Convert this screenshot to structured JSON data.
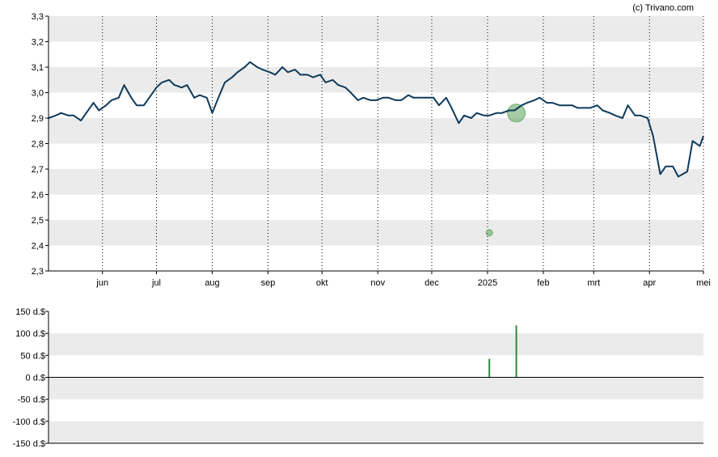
{
  "credit": "(c) Trivano.com",
  "colors": {
    "price_line": "#0e3a5c",
    "band": "#ebebeb",
    "marker": "#5aa35a",
    "volume_bar": "#2e8b3e",
    "axis": "#000000",
    "grid": "#000000"
  },
  "chart_data": [
    {
      "type": "line",
      "title": "",
      "ylim": [
        2.3,
        3.3
      ],
      "yticks": [
        "2,3",
        "2,4",
        "2,5",
        "2,6",
        "2,7",
        "2,8",
        "2,9",
        "3,0",
        "3,1",
        "3,2",
        "3,3"
      ],
      "ytick_values": [
        2.3,
        2.4,
        2.5,
        2.6,
        2.7,
        2.8,
        2.9,
        3.0,
        3.1,
        3.2,
        3.3
      ],
      "xrange": [
        "2024-05-02",
        "2025-05-01"
      ],
      "xticks": [
        {
          "label": "jun",
          "date": "2024-06-01"
        },
        {
          "label": "jul",
          "date": "2024-07-01"
        },
        {
          "label": "aug",
          "date": "2024-08-01"
        },
        {
          "label": "sep",
          "date": "2024-09-01"
        },
        {
          "label": "okt",
          "date": "2024-10-01"
        },
        {
          "label": "nov",
          "date": "2024-11-01"
        },
        {
          "label": "dec",
          "date": "2024-12-01"
        },
        {
          "label": "2025",
          "date": "2025-01-01"
        },
        {
          "label": "feb",
          "date": "2025-02-01"
        },
        {
          "label": "mrt",
          "date": "2025-03-01"
        },
        {
          "label": "apr",
          "date": "2025-04-01"
        },
        {
          "label": "mei",
          "date": "2025-05-01"
        }
      ],
      "series": [
        {
          "x": [
            "2024-05-02",
            "2024-05-06",
            "2024-05-09",
            "2024-05-13",
            "2024-05-16",
            "2024-05-20",
            "2024-05-23",
            "2024-05-27",
            "2024-05-30",
            "2024-06-03",
            "2024-06-06",
            "2024-06-10",
            "2024-06-13",
            "2024-06-17",
            "2024-06-20",
            "2024-06-24",
            "2024-06-27",
            "2024-07-01",
            "2024-07-04",
            "2024-07-08",
            "2024-07-11",
            "2024-07-15",
            "2024-07-18",
            "2024-07-22",
            "2024-07-25",
            "2024-07-29",
            "2024-08-01",
            "2024-08-05",
            "2024-08-08",
            "2024-08-12",
            "2024-08-15",
            "2024-08-19",
            "2024-08-22",
            "2024-08-26",
            "2024-08-29",
            "2024-09-02",
            "2024-09-05",
            "2024-09-09",
            "2024-09-12",
            "2024-09-16",
            "2024-09-19",
            "2024-09-23",
            "2024-09-26",
            "2024-09-30",
            "2024-10-03",
            "2024-10-07",
            "2024-10-10",
            "2024-10-14",
            "2024-10-17",
            "2024-10-21",
            "2024-10-24",
            "2024-10-28",
            "2024-10-31",
            "2024-11-04",
            "2024-11-07",
            "2024-11-11",
            "2024-11-14",
            "2024-11-18",
            "2024-11-21",
            "2024-11-25",
            "2024-11-28",
            "2024-12-02",
            "2024-12-05",
            "2024-12-09",
            "2024-12-12",
            "2024-12-16",
            "2024-12-19",
            "2024-12-23",
            "2024-12-26",
            "2024-12-30",
            "2025-01-02",
            "2025-01-06",
            "2025-01-09",
            "2025-01-13",
            "2025-01-16",
            "2025-01-20",
            "2025-01-23",
            "2025-01-27",
            "2025-01-30",
            "2025-02-03",
            "2025-02-06",
            "2025-02-10",
            "2025-02-13",
            "2025-02-17",
            "2025-02-20",
            "2025-02-24",
            "2025-02-27",
            "2025-03-03",
            "2025-03-06",
            "2025-03-10",
            "2025-03-13",
            "2025-03-17",
            "2025-03-20",
            "2025-03-24",
            "2025-03-27",
            "2025-03-31",
            "2025-04-03",
            "2025-04-07",
            "2025-04-10",
            "2025-04-14",
            "2025-04-17",
            "2025-04-22",
            "2025-04-25",
            "2025-04-29",
            "2025-05-01"
          ],
          "y": [
            2.9,
            2.91,
            2.92,
            2.91,
            2.91,
            2.89,
            2.92,
            2.96,
            2.93,
            2.95,
            2.97,
            2.98,
            3.03,
            2.98,
            2.95,
            2.95,
            2.98,
            3.02,
            3.04,
            3.05,
            3.03,
            3.02,
            3.03,
            2.98,
            2.99,
            2.98,
            2.92,
            2.99,
            3.04,
            3.06,
            3.08,
            3.1,
            3.12,
            3.1,
            3.09,
            3.08,
            3.07,
            3.1,
            3.08,
            3.09,
            3.07,
            3.07,
            3.06,
            3.07,
            3.04,
            3.05,
            3.03,
            3.02,
            3.0,
            2.97,
            2.98,
            2.97,
            2.97,
            2.98,
            2.98,
            2.97,
            2.97,
            2.99,
            2.98,
            2.98,
            2.98,
            2.98,
            2.95,
            2.98,
            2.94,
            2.88,
            2.91,
            2.9,
            2.92,
            2.91,
            2.91,
            2.92,
            2.92,
            2.93,
            2.93,
            2.95,
            2.96,
            2.97,
            2.98,
            2.96,
            2.96,
            2.95,
            2.95,
            2.95,
            2.94,
            2.94,
            2.94,
            2.95,
            2.93,
            2.92,
            2.91,
            2.9,
            2.95,
            2.91,
            2.91,
            2.9,
            2.83,
            2.68,
            2.71,
            2.71,
            2.67,
            2.69,
            2.81,
            2.79,
            2.83
          ]
        }
      ],
      "markers": [
        {
          "date": "2025-01-02",
          "value": 2.45,
          "size": "small"
        },
        {
          "date": "2025-01-17",
          "value": 2.92,
          "size": "large"
        }
      ]
    },
    {
      "type": "bar",
      "title": "",
      "ylim": [
        -150,
        150
      ],
      "yticks": [
        "150 d.$",
        "100 d.$",
        "50 d.$",
        "0 d.$",
        "-50 d.$",
        "-100 d.$",
        "-150 d.$"
      ],
      "ytick_values": [
        150,
        100,
        50,
        0,
        -50,
        -100,
        -150
      ],
      "bars": [
        {
          "date": "2025-01-02",
          "value": 42
        },
        {
          "date": "2025-01-17",
          "value": 118
        }
      ]
    }
  ]
}
